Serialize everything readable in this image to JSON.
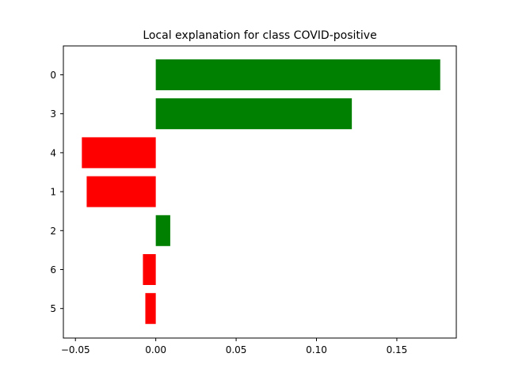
{
  "chart_data": {
    "type": "bar",
    "orientation": "horizontal",
    "title": "Local explanation for class COVID-positive",
    "xlabel": "",
    "ylabel": "",
    "categories": [
      "0",
      "3",
      "4",
      "1",
      "2",
      "6",
      "5"
    ],
    "values": [
      0.177,
      0.122,
      -0.046,
      -0.043,
      0.009,
      -0.008,
      -0.0065
    ],
    "bar_colors": [
      "#008000",
      "#008000",
      "#ff0000",
      "#ff0000",
      "#008000",
      "#ff0000",
      "#ff0000"
    ],
    "positive_color": "#008000",
    "negative_color": "#ff0000",
    "xlim": [
      -0.0575,
      0.187
    ],
    "xticks": [
      -0.05,
      0.0,
      0.05,
      0.1,
      0.15
    ],
    "xtick_labels": [
      "−0.05",
      "0.00",
      "0.05",
      "0.10",
      "0.15"
    ],
    "grid": false,
    "legend": "none"
  }
}
